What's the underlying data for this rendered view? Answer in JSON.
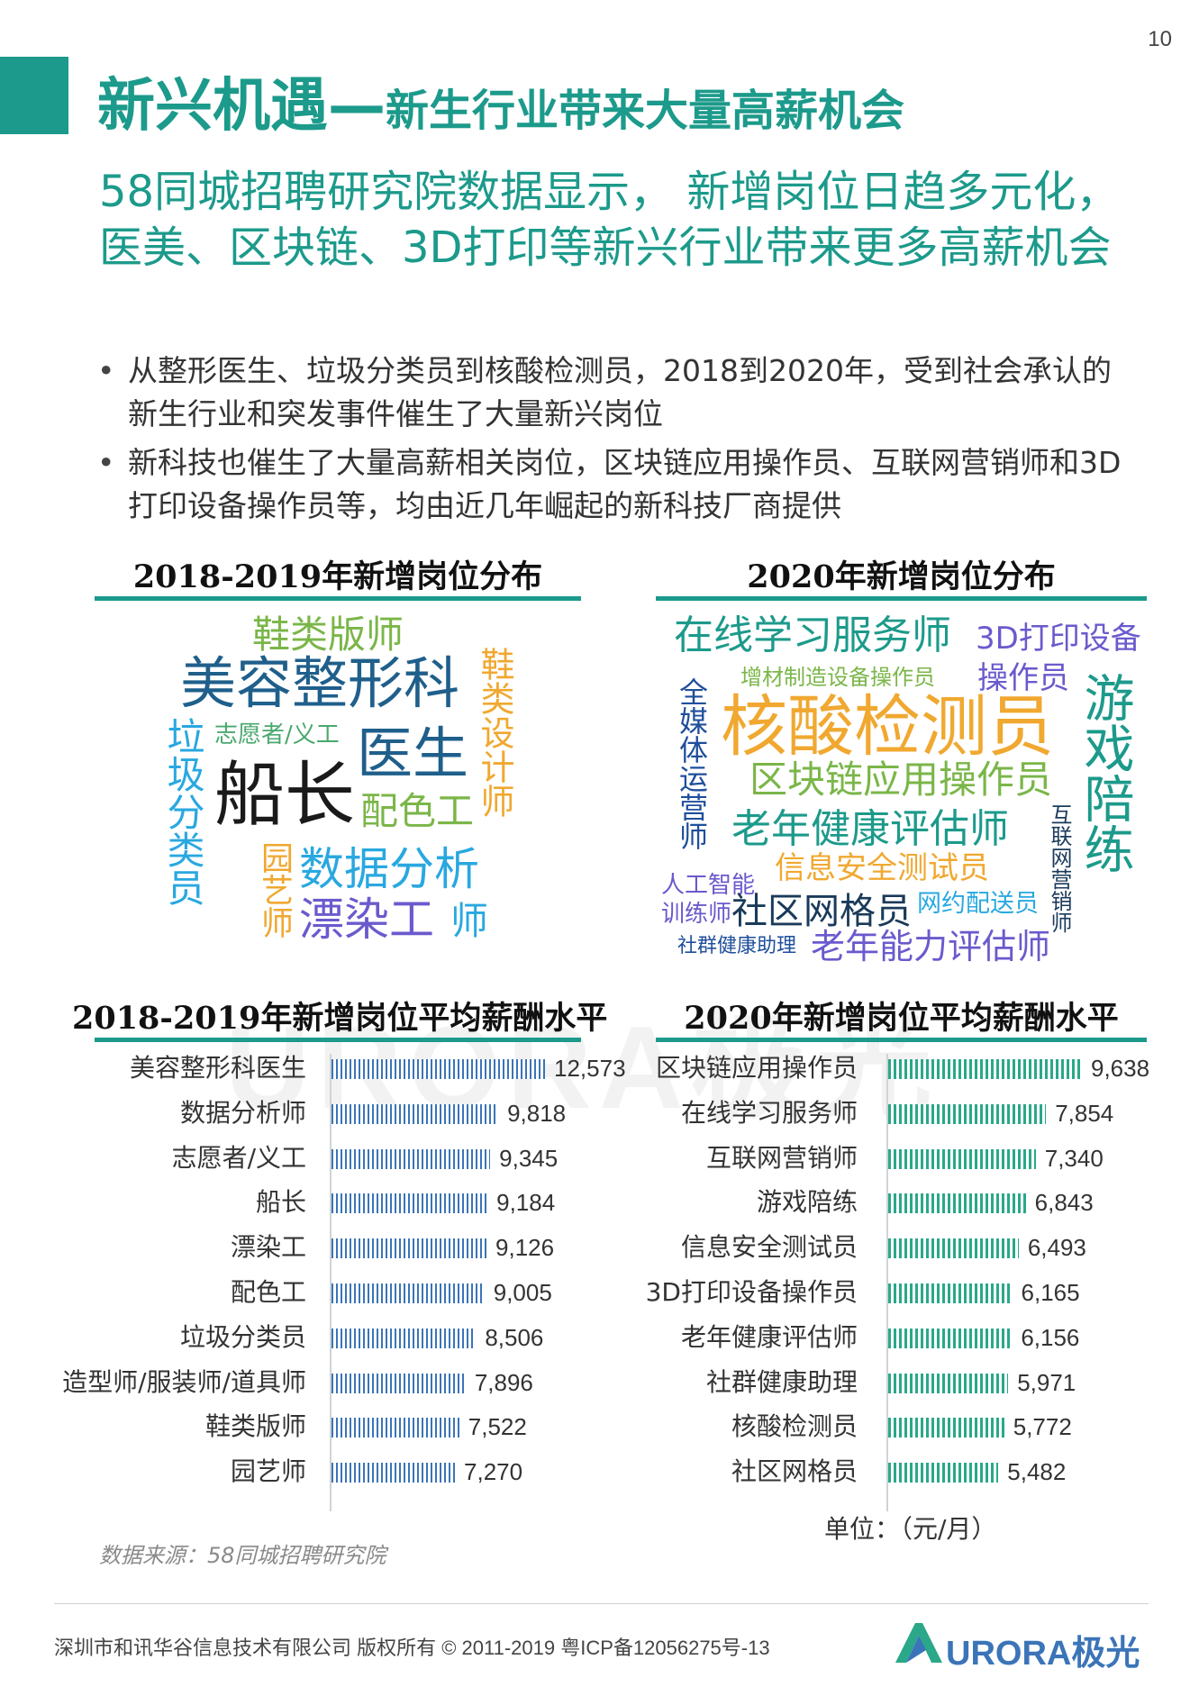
{
  "page_number": "10",
  "title": {
    "main": "新兴机遇—",
    "sub": "新生行业带来大量高薪机会"
  },
  "headline": "58同城招聘研究院数据显示， 新增岗位日趋多元化，医美、区块链、3D打印等新兴行业带来更多高薪机会",
  "bullets": [
    "从整形医生、垃圾分类员到核酸检测员，2018到2020年，受到社会承认的新生行业和突发事件催生了大量新兴岗位",
    "新科技也催生了大量高薪相关岗位，区块链应用操作员、互联网营销师和3D打印设备操作员等，均由近几年崛起的新科技厂商提供"
  ],
  "wordcloud_left": {
    "title": "2018-2019年新增岗位分布",
    "words": [
      {
        "text": "鞋类版师",
        "color": "#7ab648"
      },
      {
        "text": "美容整形科",
        "color": "#1f5f8b"
      },
      {
        "text": "鞋类设计师",
        "color": "#f0a830"
      },
      {
        "text": "垃圾分类员",
        "color": "#29a8e0"
      },
      {
        "text": "志愿者/义工",
        "color": "#4aa86e"
      },
      {
        "text": "医生",
        "color": "#1f5f8b"
      },
      {
        "text": "船长",
        "color": "#1a1a1a"
      },
      {
        "text": "配色工",
        "color": "#7ab648"
      },
      {
        "text": "园艺师",
        "color": "#f0a830"
      },
      {
        "text": "数据分析",
        "color": "#29a8e0"
      },
      {
        "text": "漂染工",
        "color": "#6a5acd"
      },
      {
        "text": "师",
        "color": "#29a8e0"
      }
    ]
  },
  "wordcloud_right": {
    "title": "2020年新增岗位分布",
    "words": [
      {
        "text": "在线学习服务师",
        "color": "#1c9a8b"
      },
      {
        "text": "3D打印设备",
        "color": "#6a5acd"
      },
      {
        "text": "增材制造设备操作员",
        "color": "#7ab648"
      },
      {
        "text": "操作员",
        "color": "#6a5acd"
      },
      {
        "text": "全媒体运营师",
        "color": "#1f4f9b"
      },
      {
        "text": "核酸检测员",
        "color": "#f0a830"
      },
      {
        "text": "游戏陪练",
        "color": "#1c9a8b"
      },
      {
        "text": "区块链应用操作员",
        "color": "#7ab648"
      },
      {
        "text": "老年健康评估师",
        "color": "#1c9a8b"
      },
      {
        "text": "互联网营销师",
        "color": "#1a3a5a"
      },
      {
        "text": "信息安全测试员",
        "color": "#f0a830"
      },
      {
        "text": "人工智能",
        "color": "#6a5acd"
      },
      {
        "text": "训练师",
        "color": "#6a5acd"
      },
      {
        "text": "社区网格员",
        "color": "#1a3a5a"
      },
      {
        "text": "网约配送员",
        "color": "#29a8e0"
      },
      {
        "text": "社群健康助理",
        "color": "#1f4f9b"
      },
      {
        "text": "老年能力评估师",
        "color": "#6a5acd"
      }
    ]
  },
  "chart_data": [
    {
      "type": "bar",
      "orientation": "horizontal",
      "title": "2018-2019年新增岗位平均薪酬水平",
      "categories": [
        "美容整形科医生",
        "数据分析师",
        "志愿者/义工",
        "船长",
        "漂染工",
        "配色工",
        "垃圾分类员",
        "造型师/服装师/道具师",
        "鞋类版师",
        "园艺师"
      ],
      "values": [
        12573,
        9818,
        9345,
        9184,
        9126,
        9005,
        8506,
        7896,
        7522,
        7270
      ],
      "value_labels": [
        "12,573",
        "9,818",
        "9,345",
        "9,184",
        "9,126",
        "9,005",
        "8,506",
        "7,896",
        "7,522",
        "7,270"
      ],
      "color": "#3b74b8",
      "xlim": [
        0,
        12573
      ]
    },
    {
      "type": "bar",
      "orientation": "horizontal",
      "title": "2020年新增岗位平均薪酬水平",
      "categories": [
        "区块链应用操作员",
        "在线学习服务师",
        "互联网营销师",
        "游戏陪练",
        "信息安全测试员",
        "3D打印设备操作员",
        "老年健康评估师",
        "社群健康助理",
        "核酸检测员",
        "社区网格员"
      ],
      "values": [
        9638,
        7854,
        7340,
        6843,
        6493,
        6165,
        6156,
        5971,
        5772,
        5482
      ],
      "value_labels": [
        "9,638",
        "7,854",
        "7,340",
        "6,843",
        "6,493",
        "6,165",
        "6,156",
        "5,971",
        "5,772",
        "5,482"
      ],
      "color": "#2aa889",
      "xlim": [
        0,
        9638
      ]
    }
  ],
  "unit": "单位：（元/月）",
  "source": "数据来源：58同城招聘研究院",
  "footer": "深圳市和讯华谷信息技术有限公司 版权所有 © 2011-2019 粤ICP备12056275号-13",
  "brand": "URORA极光",
  "watermark": "URORA极光"
}
